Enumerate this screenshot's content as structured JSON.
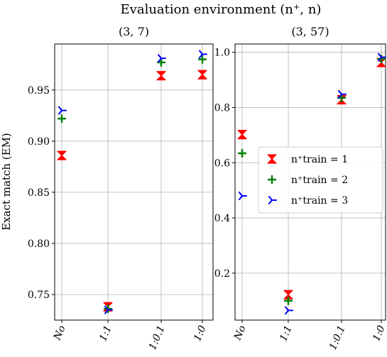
{
  "figure": {
    "suptitle": "Evaluation environment (n⁺, n)",
    "ylabel": "Exact match (EM)"
  },
  "legend": {
    "position": "center-right of right panel",
    "entries": [
      {
        "series": 0,
        "label": "n⁺train = 1"
      },
      {
        "series": 1,
        "label": "n⁺train = 2"
      },
      {
        "series": 2,
        "label": "n⁺train = 3"
      }
    ]
  },
  "colors": {
    "series1": "#ff0000",
    "series2": "#008000",
    "series3": "#0000ff",
    "grid": "#b0b0b0"
  },
  "chart_data": [
    {
      "type": "scatter",
      "title": "(3, 7)",
      "categories": [
        "No",
        "1:1",
        "1:0.1",
        "1:0"
      ],
      "ylabel": "Exact match (EM)",
      "ylim": [
        0.725,
        0.995
      ],
      "yticks": [
        0.75,
        0.8,
        0.85,
        0.9,
        0.95
      ],
      "ytick_labels": [
        "0.75",
        "0.80",
        "0.85",
        "0.90",
        "0.95"
      ],
      "grid": true,
      "series": [
        {
          "name": "n⁺train = 1",
          "marker": "hourglass",
          "values": [
            0.886,
            0.738,
            0.964,
            0.965
          ]
        },
        {
          "name": "n⁺train = 2",
          "marker": "plus",
          "values": [
            0.922,
            0.736,
            0.977,
            0.98
          ]
        },
        {
          "name": "n⁺train = 3",
          "marker": "tri",
          "values": [
            0.93,
            0.735,
            0.981,
            0.985
          ]
        }
      ]
    },
    {
      "type": "scatter",
      "title": "(3, 57)",
      "categories": [
        "No",
        "1:1",
        "1:0.1",
        "1:0"
      ],
      "ylim": [
        0.03,
        1.03
      ],
      "yticks": [
        0.2,
        0.4,
        0.6,
        0.8,
        1.0
      ],
      "ytick_labels": [
        "0.2",
        "0.4",
        "0.6",
        "0.8",
        "1.0"
      ],
      "grid": true,
      "series": [
        {
          "name": "n⁺train = 1",
          "marker": "hourglass",
          "values": [
            0.702,
            0.122,
            0.828,
            0.963
          ]
        },
        {
          "name": "n⁺train = 2",
          "marker": "plus",
          "values": [
            0.634,
            0.1,
            0.835,
            0.976
          ]
        },
        {
          "name": "n⁺train = 3",
          "marker": "tri",
          "values": [
            0.48,
            0.065,
            0.848,
            0.982
          ]
        }
      ]
    }
  ]
}
